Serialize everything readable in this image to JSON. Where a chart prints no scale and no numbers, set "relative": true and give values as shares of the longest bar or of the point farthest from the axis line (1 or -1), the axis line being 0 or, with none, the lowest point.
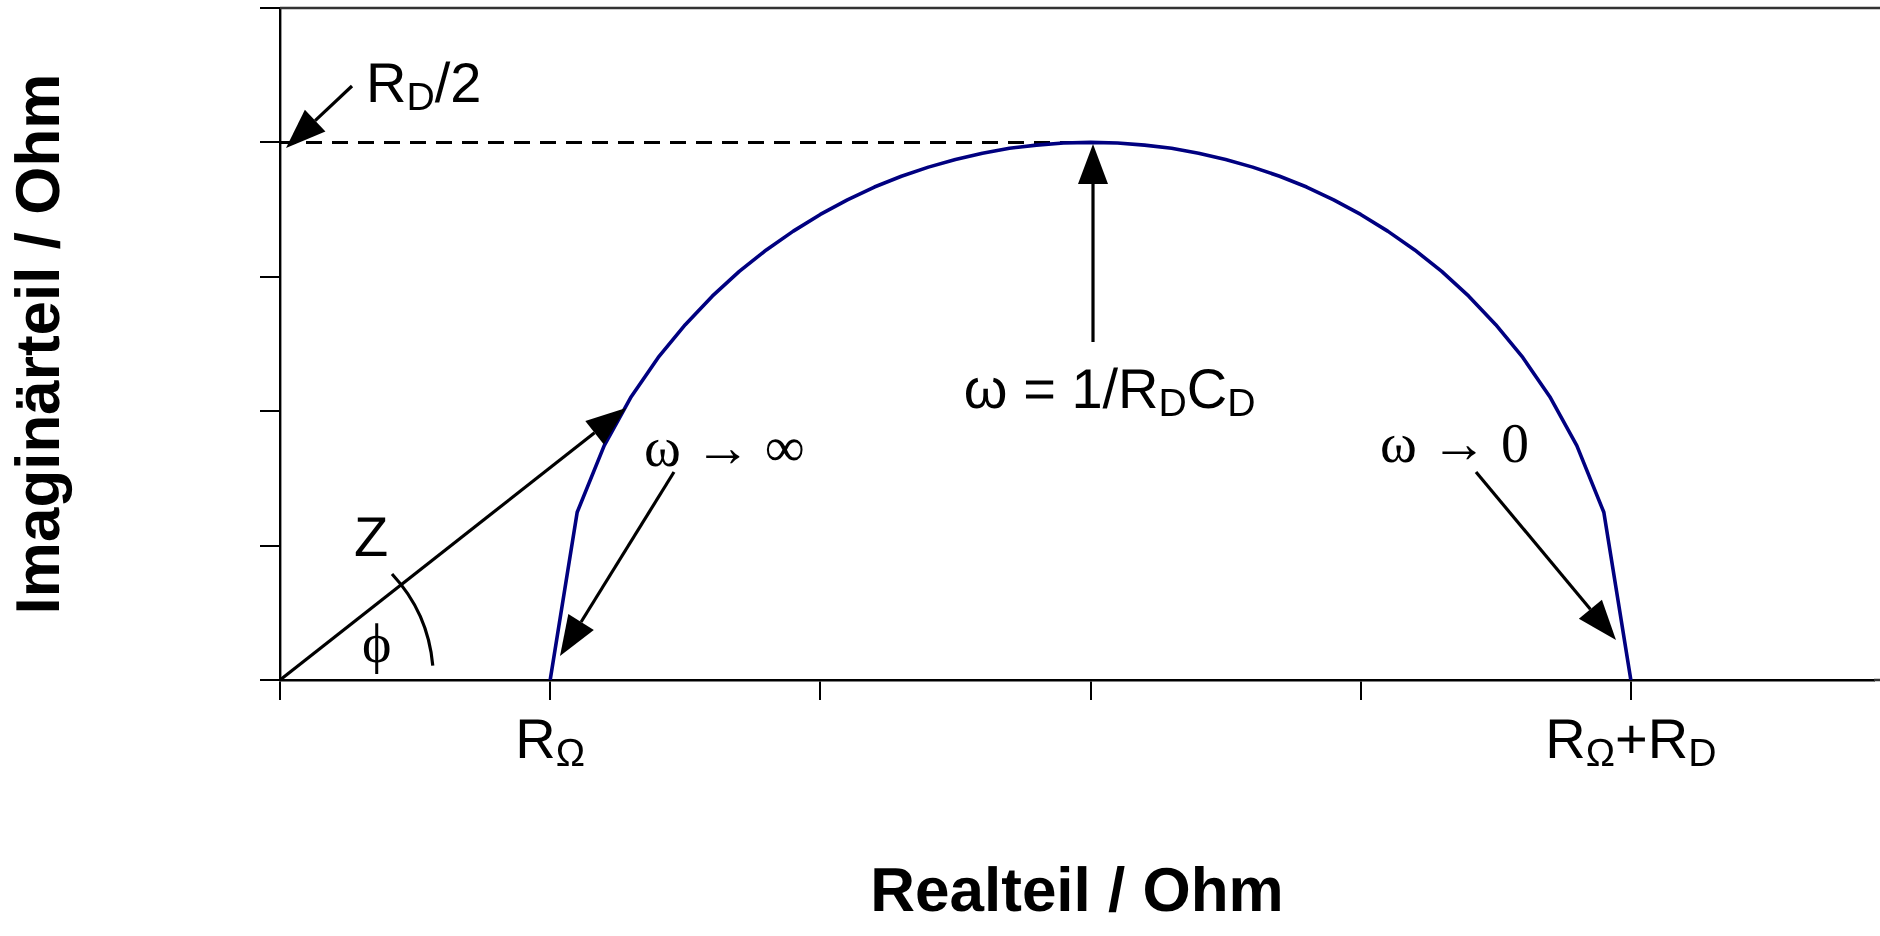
{
  "chart_data": {
    "type": "line",
    "xlabel": "Realteil / Ohm",
    "ylabel": "Imaginärteil / Ohm",
    "relative": true,
    "grid": false,
    "legend": false,
    "marker": "none",
    "categories": [
      null,
      null,
      null,
      null,
      null,
      null,
      null,
      null,
      null,
      null,
      "R$_{Ω}$",
      null,
      null,
      null,
      null,
      null,
      null,
      null,
      null,
      null,
      null,
      null,
      null,
      null,
      null,
      null,
      null,
      null,
      null,
      null,
      null,
      null,
      null,
      null,
      null,
      null,
      null,
      null,
      null,
      null,
      null,
      null,
      null,
      null,
      null,
      null,
      null,
      null,
      null,
      null,
      "R$_{Ω}$+R$_{D}$",
      null,
      null,
      null,
      null,
      null,
      null,
      null,
      null,
      null
    ],
    "series": [
      {
        "color": "#000080",
        "values": [
          null,
          null,
          null,
          null,
          null,
          null,
          null,
          null,
          null,
          null,
          0,
          0.312,
          0.436,
          0.527,
          0.6,
          0.661,
          0.714,
          0.76,
          0.8,
          0.835,
          0.866,
          0.893,
          0.917,
          0.937,
          0.954,
          0.968,
          0.98,
          0.989,
          0.995,
          0.999,
          1,
          0.999,
          0.995,
          0.989,
          0.98,
          0.968,
          0.954,
          0.937,
          0.917,
          0.893,
          0.866,
          0.835,
          0.8,
          0.76,
          0.714,
          0.661,
          0.6,
          0.527,
          0.436,
          0.312,
          0,
          null,
          null,
          null,
          null,
          null,
          null,
          null,
          null,
          null
        ]
      },
      {
        "color": "#000000",
        "line_style": "dashed",
        "values": [
          1,
          1,
          1,
          1,
          1,
          1,
          1,
          1,
          1,
          1,
          1,
          1,
          1,
          1,
          1,
          1,
          1,
          1,
          1,
          1,
          1,
          1,
          1,
          1,
          1,
          1,
          1,
          1,
          1,
          1,
          1,
          null,
          null,
          null,
          null,
          null,
          null,
          null,
          null,
          null,
          null,
          null,
          null,
          null,
          null,
          null,
          null,
          null,
          null,
          null,
          null,
          null,
          null,
          null,
          null,
          null,
          null,
          null,
          null,
          null
        ]
      }
    ],
    "annotations": [
      {
        "text": "R$_{D}$/2",
        "y": 1
      },
      "ω = 1/R$_{D}$C$_{D}$",
      "ω → ∞",
      "ω → 0",
      "Z",
      "ϕ"
    ]
  }
}
